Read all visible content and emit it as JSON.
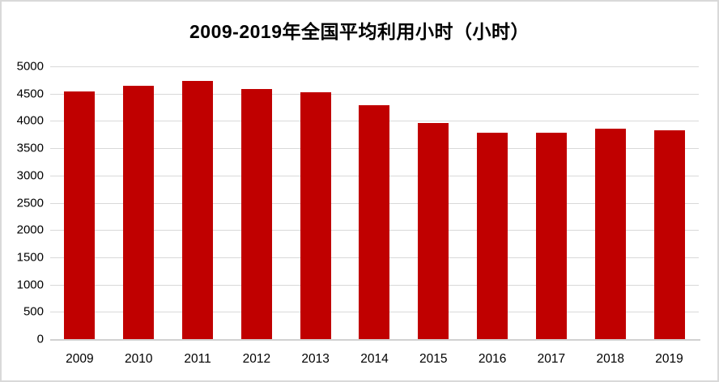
{
  "chart_data": {
    "type": "bar",
    "title": "2009-2019年全国平均利用小时（小时）",
    "categories": [
      "2009",
      "2010",
      "2011",
      "2012",
      "2013",
      "2014",
      "2015",
      "2016",
      "2017",
      "2018",
      "2019"
    ],
    "values": [
      4546,
      4650,
      4730,
      4579,
      4521,
      4286,
      3969,
      3785,
      3790,
      3862,
      3825
    ],
    "xlabel": "",
    "ylabel": "",
    "ylim": [
      0,
      5000
    ],
    "y_tick_step": 500,
    "y_ticks": [
      "5000",
      "4500",
      "4000",
      "3500",
      "3000",
      "2500",
      "2000",
      "1500",
      "1000",
      "500",
      "0"
    ],
    "grid": true,
    "legend_position": "none",
    "colors": {
      "bar": "#c00000",
      "gridline": "#d9d9d9",
      "axis_line": "#d1d1d1",
      "text": "#000000",
      "frame_border": "#d9d9d9",
      "background": "#ffffff"
    }
  }
}
